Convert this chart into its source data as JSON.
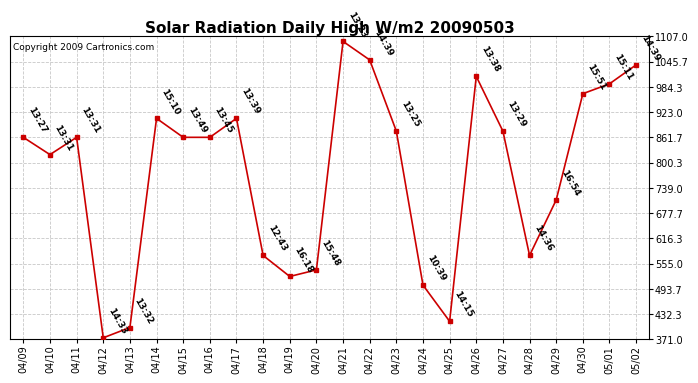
{
  "title": "Solar Radiation Daily High W/m2 20090503",
  "copyright": "Copyright 2009 Cartronics.com",
  "dates": [
    "04/09",
    "04/10",
    "04/11",
    "04/12",
    "04/13",
    "04/14",
    "04/15",
    "04/16",
    "04/17",
    "04/18",
    "04/19",
    "04/20",
    "04/21",
    "04/22",
    "04/23",
    "04/24",
    "04/25",
    "04/26",
    "04/27",
    "04/28",
    "04/29",
    "04/30",
    "05/01",
    "05/02"
  ],
  "values": [
    862,
    820,
    862,
    375,
    400,
    908,
    862,
    862,
    908,
    575,
    524,
    540,
    1095,
    1050,
    877,
    503,
    415,
    1010,
    877,
    575,
    710,
    968,
    992,
    1038
  ],
  "labels": [
    "13:27",
    "13:31",
    "13:31",
    "14:33",
    "13:32",
    "15:10",
    "13:49",
    "13:45",
    "13:39",
    "12:43",
    "16:18",
    "15:48",
    "13:23",
    "14:39",
    "13:25",
    "10:39",
    "14:15",
    "13:38",
    "13:29",
    "14:36",
    "16:54",
    "15:51",
    "15:11",
    "14:39"
  ],
  "ylim_min": 371.0,
  "ylim_max": 1107.0,
  "yticks": [
    371.0,
    432.3,
    493.7,
    555.0,
    616.3,
    677.7,
    739.0,
    800.3,
    861.7,
    923.0,
    984.3,
    1045.7,
    1107.0
  ],
  "line_color": "#cc0000",
  "marker_color": "#cc0000",
  "bg_color": "#ffffff",
  "grid_color": "#c8c8c8",
  "title_fontsize": 11,
  "label_fontsize": 6.5,
  "tick_fontsize": 7,
  "copyright_fontsize": 6.5
}
